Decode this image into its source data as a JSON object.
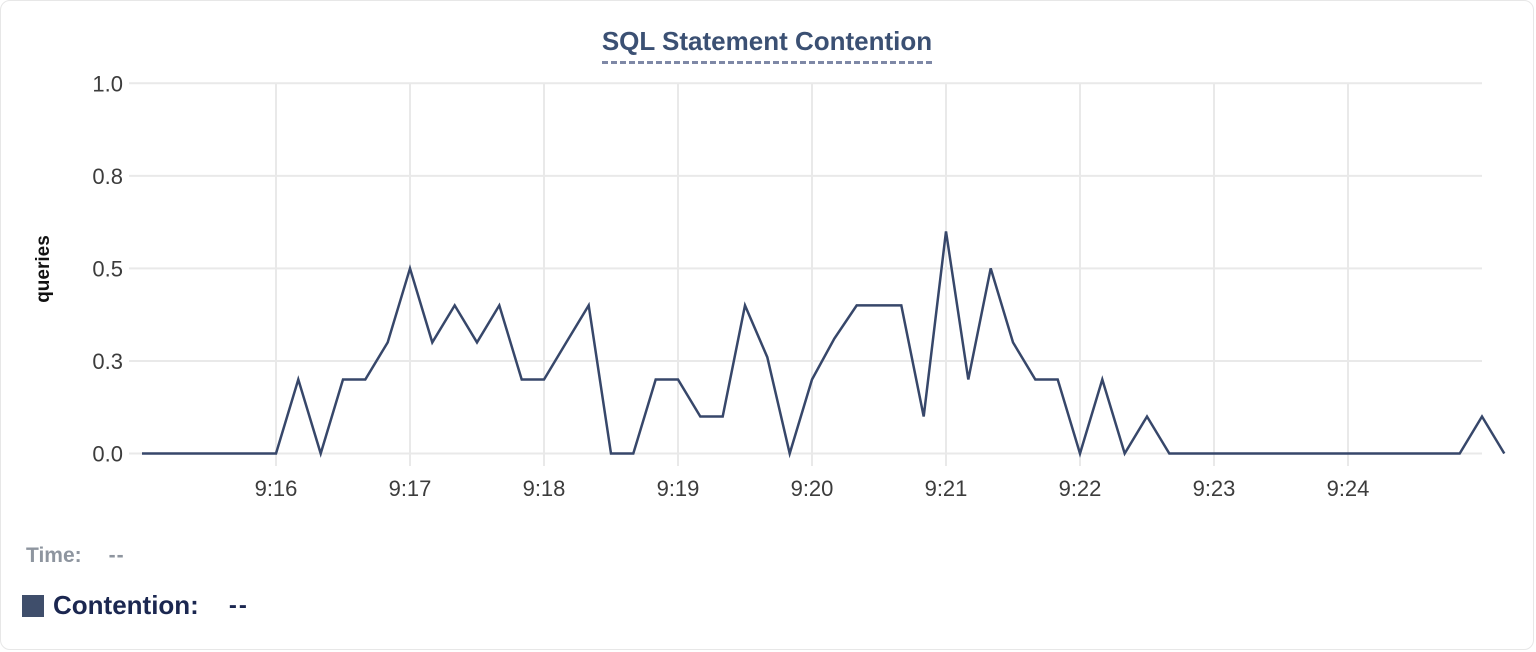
{
  "chart_data": {
    "type": "line",
    "title": "SQL Statement Contention",
    "xlabel": "",
    "ylabel": "queries",
    "ylim": [
      0,
      1
    ],
    "grid": true,
    "legend_position": "bottom-left",
    "x_range": [
      "9:15",
      "9:25"
    ],
    "sample_interval_seconds": 10,
    "x_tick_labels": [
      "9:16",
      "9:17",
      "9:18",
      "9:19",
      "9:20",
      "9:21",
      "9:22",
      "9:23",
      "9:24"
    ],
    "y_ticks": [
      {
        "value": 0,
        "label": "0.0"
      },
      {
        "value": 0.25,
        "label": "0.3"
      },
      {
        "value": 0.5,
        "label": "0.5"
      },
      {
        "value": 0.75,
        "label": "0.8"
      },
      {
        "value": 1,
        "label": "1.0"
      }
    ],
    "series": [
      {
        "name": "Contention",
        "color": "#37476a",
        "values": [
          0,
          0,
          0,
          0,
          0,
          0,
          0,
          0.2,
          0,
          0.2,
          0.2,
          0.3,
          0.5,
          0.3,
          0.4,
          0.3,
          0.4,
          0.2,
          0.2,
          0.3,
          0.4,
          0,
          0,
          0.2,
          0.2,
          0.1,
          0.1,
          0.4,
          0.26,
          0,
          0.2,
          0.31,
          0.4,
          0.4,
          0.4,
          0.1,
          0.6,
          0.2,
          0.5,
          0.3,
          0.2,
          0.2,
          0,
          0.2,
          0,
          0.1,
          0,
          0,
          0,
          0,
          0,
          0,
          0,
          0,
          0,
          0,
          0,
          0,
          0,
          0,
          0.1,
          0
        ]
      }
    ]
  },
  "legend": {
    "time_label": "Time:",
    "time_value": "--",
    "contention_label": "Contention:",
    "contention_value": "--",
    "contention_color": "#3f4e6b"
  },
  "colors": {
    "grid": "#e9e9e9",
    "axis_text": "#3c3c3c",
    "axis_title_text": "#111111",
    "title_text": "#3b5073",
    "title_underline": "#7e88a6"
  }
}
